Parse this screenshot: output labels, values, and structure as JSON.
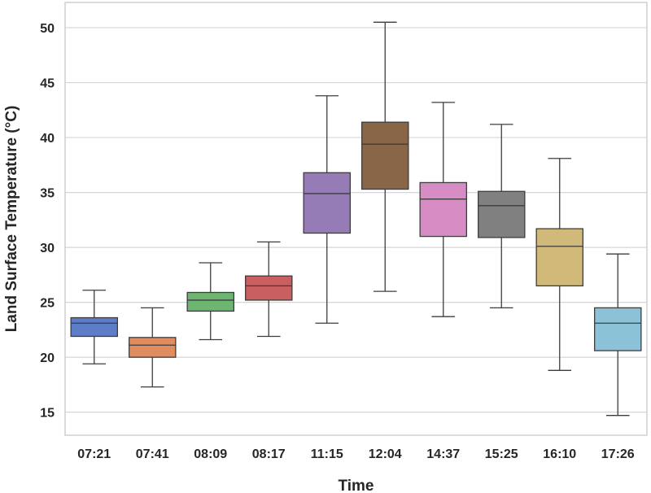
{
  "chart_data": {
    "type": "box",
    "xlabel": "Time",
    "ylabel": "Land Surface Temperature (°C)",
    "ylim": [
      12.9,
      52.3
    ],
    "yticks": [
      15,
      20,
      25,
      30,
      35,
      40,
      45,
      50
    ],
    "ytick_labels": [
      "15",
      "20",
      "25",
      "30",
      "35",
      "40",
      "45",
      "50"
    ],
    "grid": true,
    "categories": [
      "07:21",
      "07:41",
      "08:09",
      "08:17",
      "11:15",
      "12:04",
      "14:37",
      "15:25",
      "16:10",
      "17:26"
    ],
    "boxes": [
      {
        "category": "07:21",
        "min": 19.4,
        "q1": 21.9,
        "median": 23.1,
        "q3": 23.6,
        "max": 26.1,
        "color": "#5d7dc8"
      },
      {
        "category": "07:41",
        "min": 17.3,
        "q1": 20.0,
        "median": 21.1,
        "q3": 21.8,
        "max": 24.5,
        "color": "#e08c5f"
      },
      {
        "category": "08:09",
        "min": 21.6,
        "q1": 24.2,
        "median": 25.2,
        "q3": 25.9,
        "max": 28.6,
        "color": "#6cb672"
      },
      {
        "category": "08:17",
        "min": 21.9,
        "q1": 25.2,
        "median": 26.5,
        "q3": 27.4,
        "max": 30.5,
        "color": "#c95f5e"
      },
      {
        "category": "11:15",
        "min": 23.1,
        "q1": 31.3,
        "median": 34.9,
        "q3": 36.8,
        "max": 43.8,
        "color": "#957cb7"
      },
      {
        "category": "12:04",
        "min": 26.0,
        "q1": 35.3,
        "median": 39.4,
        "q3": 41.4,
        "max": 50.5,
        "color": "#8a6648"
      },
      {
        "category": "14:37",
        "min": 23.7,
        "q1": 31.0,
        "median": 34.4,
        "q3": 35.9,
        "max": 43.2,
        "color": "#d78cc3"
      },
      {
        "category": "15:25",
        "min": 24.5,
        "q1": 30.9,
        "median": 33.8,
        "q3": 35.1,
        "max": 41.2,
        "color": "#808080"
      },
      {
        "category": "16:10",
        "min": 18.8,
        "q1": 26.5,
        "median": 30.1,
        "q3": 31.7,
        "max": 38.1,
        "color": "#d1b979"
      },
      {
        "category": "17:26",
        "min": 14.7,
        "q1": 20.6,
        "median": 23.1,
        "q3": 24.5,
        "max": 29.4,
        "color": "#8bc2d8"
      }
    ]
  }
}
